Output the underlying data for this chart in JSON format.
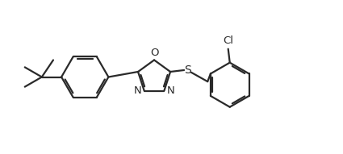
{
  "background_color": "#ffffff",
  "line_color": "#2a2a2a",
  "line_width": 1.6,
  "text_color": "#2a2a2a",
  "font_size": 9.5,
  "figsize": [
    4.25,
    1.91
  ],
  "dpi": 100,
  "xlim": [
    0,
    10.5
  ],
  "ylim": [
    0,
    4.5
  ]
}
